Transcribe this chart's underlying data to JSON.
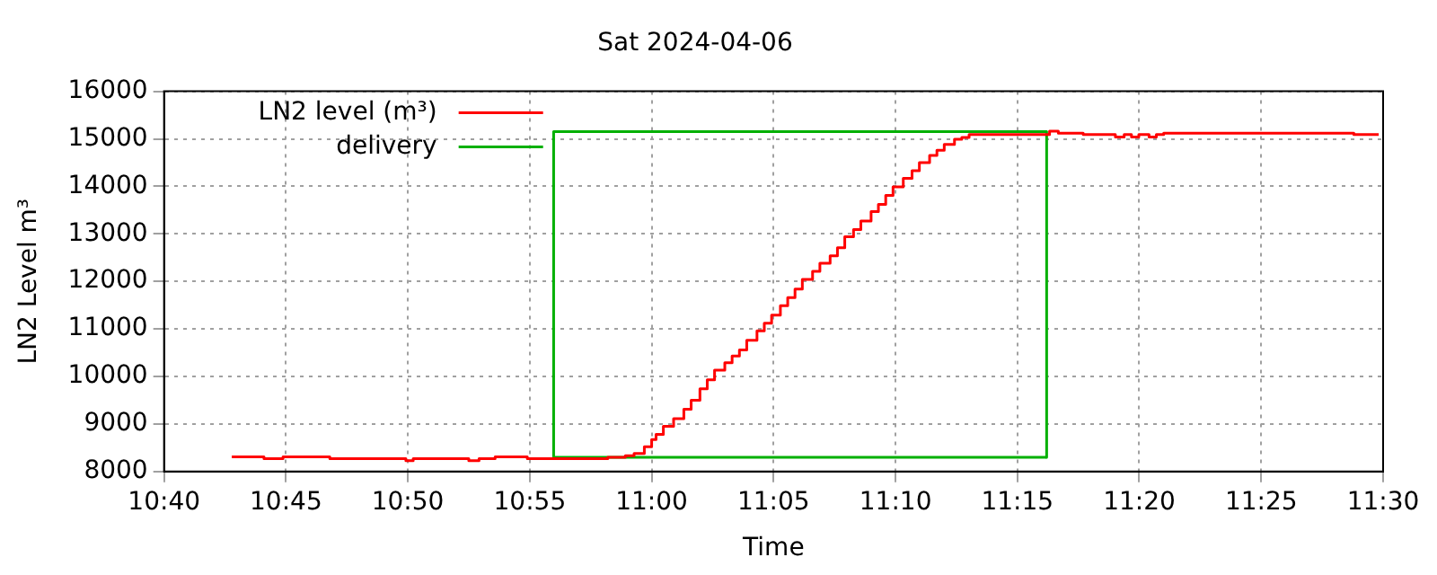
{
  "chart_data": {
    "type": "step",
    "title": "Sat 2024-04-06",
    "xlabel": "Time",
    "ylabel": "LN2 Level m³",
    "xlim": [
      10.6667,
      11.5
    ],
    "xticks": [
      {
        "value": 10.6667,
        "label": "10:40"
      },
      {
        "value": 10.75,
        "label": "10:45"
      },
      {
        "value": 10.8333,
        "label": "10:50"
      },
      {
        "value": 10.9167,
        "label": "10:55"
      },
      {
        "value": 11,
        "label": "11:00"
      },
      {
        "value": 11.0833,
        "label": "11:05"
      },
      {
        "value": 11.1667,
        "label": "11:10"
      },
      {
        "value": 11.25,
        "label": "11:15"
      },
      {
        "value": 11.3333,
        "label": "11:20"
      },
      {
        "value": 11.4167,
        "label": "11:25"
      },
      {
        "value": 11.5,
        "label": "11:30"
      }
    ],
    "ylim": [
      8000,
      16000
    ],
    "yticks": [
      8000,
      9000,
      10000,
      11000,
      12000,
      13000,
      14000,
      15000,
      16000
    ],
    "grid": true,
    "legend": "top left",
    "marker": "none",
    "series": [
      {
        "name": "LN2 level (m³)",
        "type": "step",
        "color": "#ff0000",
        "x": [
          10.713,
          10.735,
          10.748,
          10.78,
          10.832,
          10.837,
          10.875,
          10.882,
          10.893,
          10.915,
          10.97,
          10.982,
          10.988,
          10.995,
          11.0,
          11.003,
          11.008,
          11.015,
          11.022,
          11.027,
          11.033,
          11.038,
          11.043,
          11.05,
          11.055,
          11.06,
          11.065,
          11.072,
          11.077,
          11.082,
          11.088,
          11.093,
          11.098,
          11.103,
          11.11,
          11.115,
          11.122,
          11.127,
          11.132,
          11.138,
          11.143,
          11.15,
          11.155,
          11.16,
          11.165,
          11.172,
          11.178,
          11.183,
          11.19,
          11.195,
          11.2,
          11.207,
          11.212,
          11.217,
          11.272,
          11.278,
          11.295,
          11.317,
          11.323,
          11.328,
          11.333,
          11.34,
          11.345,
          11.35,
          11.48,
          11.497
        ],
        "values": [
          8310,
          8270,
          8310,
          8270,
          8230,
          8270,
          8230,
          8270,
          8310,
          8270,
          8300,
          8330,
          8380,
          8520,
          8670,
          8780,
          8950,
          9110,
          9310,
          9500,
          9740,
          9930,
          10130,
          10290,
          10430,
          10560,
          10760,
          10960,
          11120,
          11290,
          11490,
          11660,
          11840,
          12040,
          12210,
          12380,
          12540,
          12710,
          12940,
          13090,
          13270,
          13470,
          13620,
          13810,
          13990,
          14170,
          14330,
          14500,
          14650,
          14760,
          14880,
          14990,
          15030,
          15090,
          15160,
          15120,
          15090,
          15040,
          15090,
          15040,
          15090,
          15040,
          15090,
          15120,
          15090,
          15090
        ]
      },
      {
        "name": "delivery",
        "type": "line",
        "color": "#00b000",
        "x": [
          10.933,
          10.933,
          11.27,
          11.27
        ],
        "values": [
          8300,
          15150,
          15150,
          8300
        ]
      },
      {
        "type": "line",
        "color": "#00b000",
        "x": [
          10.933,
          11.27
        ],
        "values": [
          8300,
          8300
        ]
      }
    ]
  }
}
